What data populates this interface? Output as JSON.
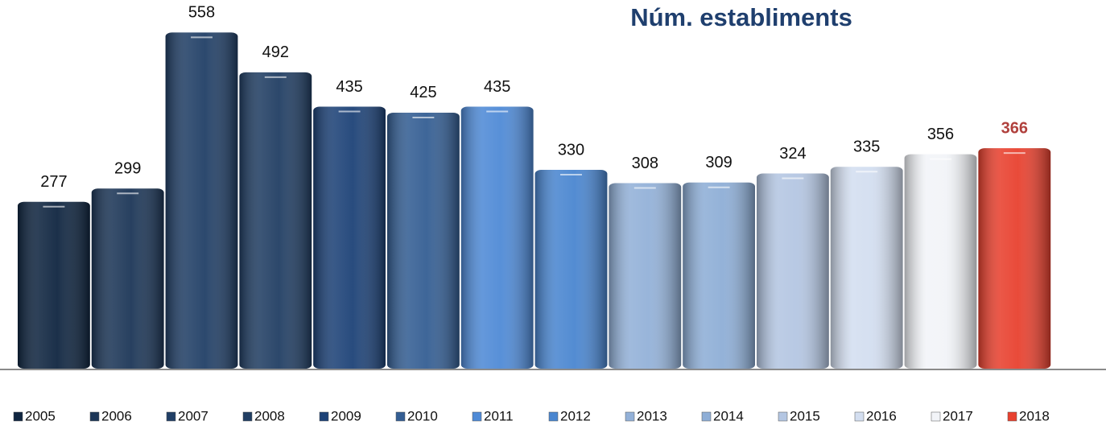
{
  "chart_data": {
    "type": "bar",
    "title": "Núm. establiments",
    "categories": [
      "2005",
      "2006",
      "2007",
      "2008",
      "2009",
      "2010",
      "2011",
      "2012",
      "2013",
      "2014",
      "2015",
      "2016",
      "2017",
      "2018"
    ],
    "values": [
      277,
      299,
      558,
      492,
      435,
      425,
      435,
      330,
      308,
      309,
      324,
      335,
      356,
      366
    ],
    "colors": [
      "#0f2540",
      "#1c3657",
      "#213f66",
      "#213e63",
      "#1d4277",
      "#345e93",
      "#4f8ad6",
      "#4a86d0",
      "#93b1d8",
      "#8eaed6",
      "#b4c6e2",
      "#d3def0",
      "#f2f4f8",
      "#e8412f"
    ],
    "ylim": [
      0,
      600
    ]
  }
}
